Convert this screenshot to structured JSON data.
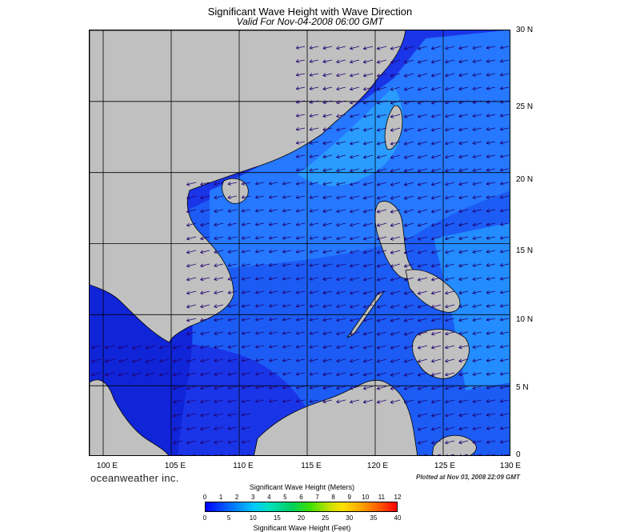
{
  "header": {
    "title": "Significant Wave Height with Wave Direction",
    "subtitle": "Valid For Nov-04-2008 06:00 GMT"
  },
  "axes": {
    "lat_labels": [
      "30 N",
      "25 N",
      "20 N",
      "15 N",
      "10 N",
      "5 N",
      "0"
    ],
    "lon_labels": [
      "100 E",
      "105 E",
      "110 E",
      "115 E",
      "120 E",
      "125 E",
      "130 E"
    ],
    "lat_range": [
      0,
      30
    ],
    "lon_range": [
      99,
      130
    ],
    "grid": true
  },
  "footer": {
    "brand": "oceanweather inc.",
    "plotted": "Plotted at Nov 03, 2008 22:09 GMT"
  },
  "colorbar": {
    "title_meters": "Significant Wave Height (Meters)",
    "title_feet": "Significant Wave Height (Feet)",
    "meter_ticks": [
      "0",
      "1",
      "2",
      "3",
      "4",
      "5",
      "6",
      "7",
      "8",
      "9",
      "10",
      "11",
      "12"
    ],
    "feet_ticks": [
      "0",
      "5",
      "10",
      "15",
      "20",
      "25",
      "30",
      "35",
      "40"
    ]
  },
  "colors": {
    "land": "#c0c0c0",
    "ocean_low": "#0a2ae0",
    "ocean_mid": "#1f6dff",
    "ocean_high": "#26b4ff",
    "arrow": "#200070",
    "grid": "#000000"
  }
}
